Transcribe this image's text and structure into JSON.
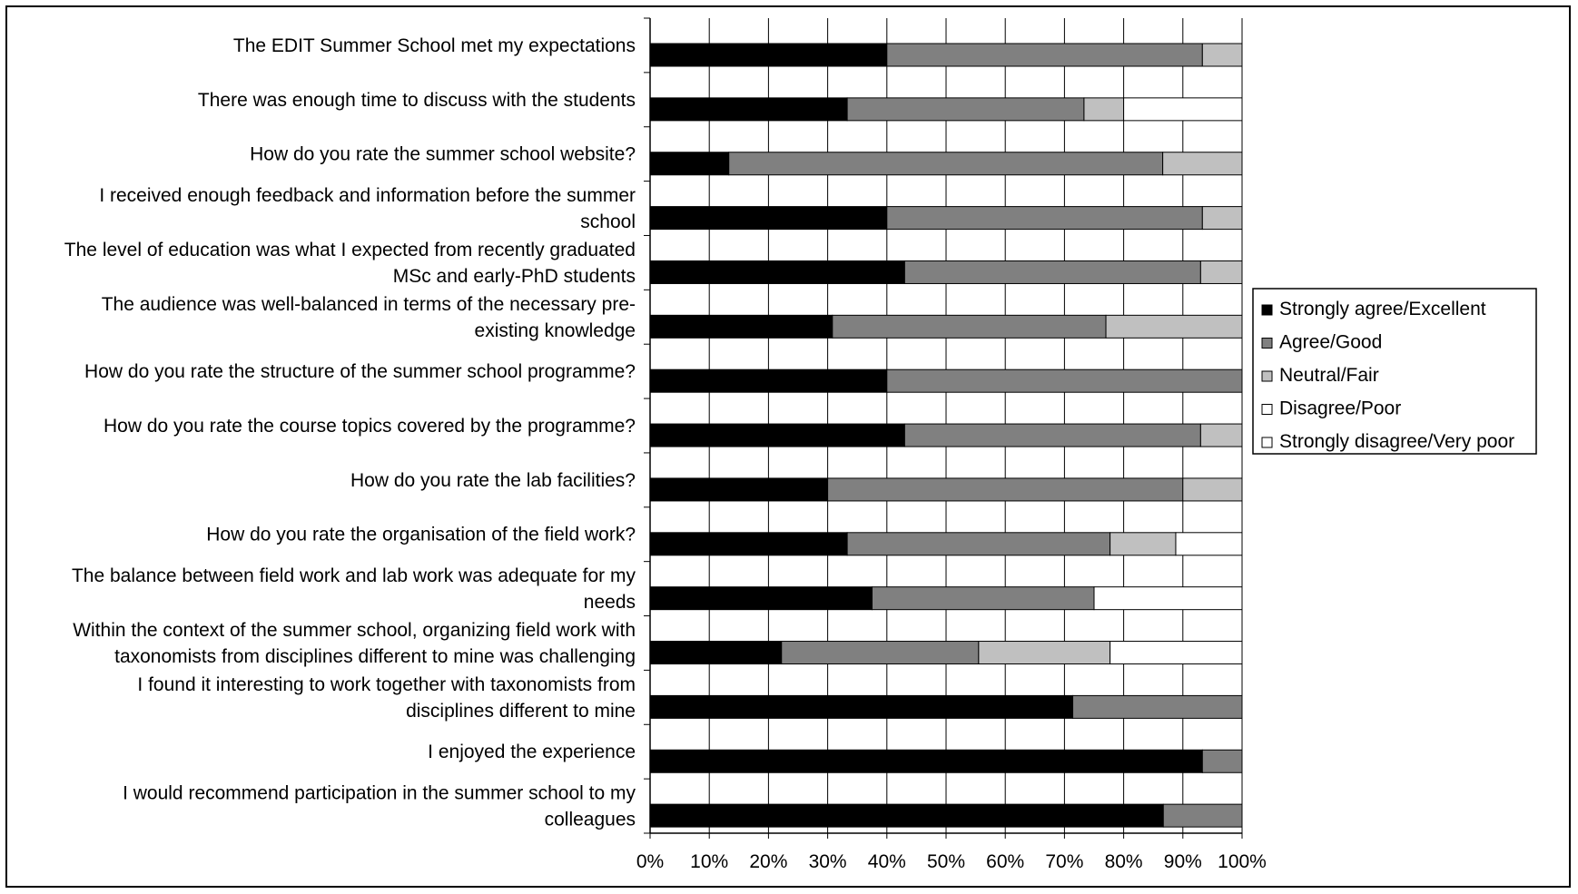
{
  "chart_data": {
    "type": "bar",
    "orientation": "horizontal",
    "stacked": true,
    "percent_stacked": true,
    "categories": [
      "The EDIT Summer School met my expectations",
      "There was enough time to discuss with the students",
      "How do you rate the summer school website?",
      "I received enough feedback and information before the summer school",
      "The level of education was what I expected from recently graduated MSc and early-PhD students",
      "The audience was well-balanced in terms of the necessary pre-existing knowledge",
      "How do you rate the structure of the summer school programme?",
      "How do you rate the course topics covered by the programme?",
      "How do you rate the lab facilities?",
      "How do you rate the organisation of the field work?",
      "The balance between field work and lab work was adequate for my needs",
      "Within the context of the summer school, organizing field work with taxonomists from disciplines different to mine was challenging",
      "I found it interesting to work together with taxonomists from disciplines different to mine",
      "I enjoyed the experience",
      "I would recommend participation in the summer school to my colleagues"
    ],
    "category_lines": [
      [
        "The EDIT Summer School met my expectations"
      ],
      [
        "There was enough time to discuss with the students"
      ],
      [
        "How do you rate the summer school website?"
      ],
      [
        "I received enough feedback and information before the summer",
        "school"
      ],
      [
        "The level of education was what I expected from recently graduated",
        "MSc and early-PhD students"
      ],
      [
        "The audience was well-balanced in terms of the necessary pre-",
        "existing knowledge"
      ],
      [
        "How do you rate the structure of the summer school programme?"
      ],
      [
        "How do you rate the course topics covered by the programme?"
      ],
      [
        "How do you rate the lab facilities?"
      ],
      [
        "How do you rate the organisation of the field work?"
      ],
      [
        "The balance between field work and lab work was adequate for my",
        "needs"
      ],
      [
        "Within the context of the summer school, organizing field work with",
        "taxonomists from disciplines different to mine was challenging"
      ],
      [
        "I found it interesting to work together with taxonomists from",
        "disciplines different to mine"
      ],
      [
        "I enjoyed the experience"
      ],
      [
        "I would recommend participation in the summer school to my",
        "colleagues"
      ]
    ],
    "series": [
      {
        "name": "Strongly agree/Excellent",
        "color": "#000000",
        "values": [
          40,
          33.3,
          13.3,
          40,
          43,
          30.8,
          40,
          43,
          30,
          33.3,
          37.5,
          22.2,
          71.4,
          93.3,
          86.7
        ]
      },
      {
        "name": "Agree/Good",
        "color": "#808080",
        "values": [
          53.3,
          40,
          73.3,
          53.3,
          50,
          46.2,
          60,
          50,
          60,
          44.4,
          37.5,
          33.3,
          28.6,
          6.7,
          13.3
        ]
      },
      {
        "name": "Neutral/Fair",
        "color": "#c0c0c0",
        "values": [
          6.7,
          6.7,
          13.4,
          6.7,
          7,
          23,
          0,
          7,
          10,
          11.1,
          0,
          22.2,
          0,
          0,
          0
        ]
      },
      {
        "name": "Disagree/Poor",
        "color": "#ffffff",
        "values": [
          0,
          20,
          0,
          0,
          0,
          0,
          0,
          0,
          0,
          11.2,
          25,
          22.3,
          0,
          0,
          0
        ]
      },
      {
        "name": "Strongly disagree/Very poor",
        "color": "#ffffff",
        "values": [
          0,
          0,
          0,
          0,
          0,
          0,
          0,
          0,
          0,
          0,
          0,
          0,
          0,
          0,
          0
        ]
      }
    ],
    "xlim": [
      0,
      100
    ],
    "xticks": [
      "0%",
      "10%",
      "20%",
      "30%",
      "40%",
      "50%",
      "60%",
      "70%",
      "80%",
      "90%",
      "100%"
    ],
    "grid": "vertical",
    "legend": "right"
  }
}
